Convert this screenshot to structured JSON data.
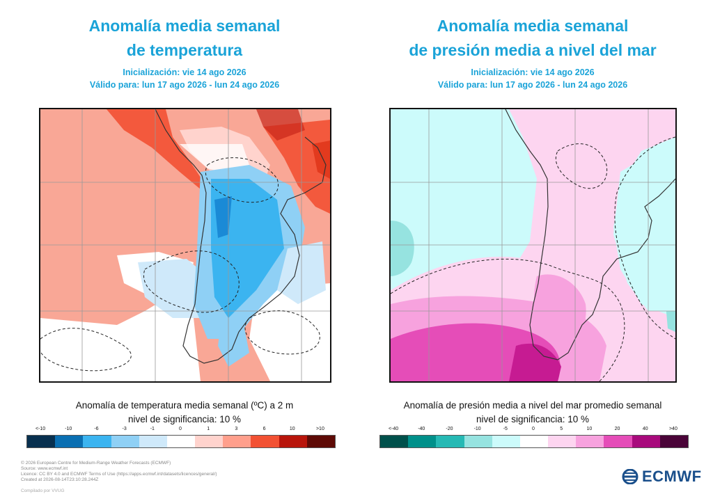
{
  "left": {
    "title_line1": "Anomalía media semanal",
    "title_line2": "de temperatura",
    "init": "Inicialización: vie 14 ago 2026",
    "valid": "Válido para: lun 17 ago 2026 - lun 24 ago 2026",
    "caption_line1": "Anomalía de temperatura media semanal (ºC) a 2 m",
    "caption_line2": "nivel de significancia: 10 %",
    "ticks": [
      "<-10",
      "-10",
      "-6",
      "-3",
      "-1",
      "0",
      "1",
      "3",
      "6",
      "10",
      ">10"
    ],
    "colors": [
      "#08304f",
      "#0a6fb2",
      "#3bb4f0",
      "#8fd0f5",
      "#cfe9fa",
      "#ffffff",
      "#ffd3cd",
      "#ff9f8c",
      "#f25133",
      "#b8150b",
      "#5e0a06"
    ]
  },
  "right": {
    "title_line1": "Anomalía media semanal",
    "title_line2": "de presión media a nivel del mar",
    "init": "Inicialización: vie 14 ago 2026",
    "valid": "Válido para: lun 17 ago 2026 - lun 24 ago 2026",
    "caption_line1": "Anomalía de presión media a nivel del mar promedio semanal",
    "caption_line2": "nivel de significancia: 10 %",
    "ticks": [
      "<-40",
      "-40",
      "-20",
      "-10",
      "-5",
      "0",
      "5",
      "10",
      "20",
      "40",
      ">40"
    ],
    "colors": [
      "#00504b",
      "#00908a",
      "#26b9b4",
      "#96e3e0",
      "#ccfbfb",
      "#ffffff",
      "#fdd5f0",
      "#f7a2de",
      "#e54db8",
      "#a80a7c",
      "#4a0438"
    ]
  },
  "footer": {
    "line1": "© 2026 European Centre for Medium-Range Weather Forecasts (ECMWF)",
    "line2": "Source: www.ecmwf.int",
    "line3": "Licence: CC BY 4.0 and ECMWF Terms of Use (https://apps.ecmwf.int/datasets/licences/general/)",
    "line4": "Created at 2026-08-14T23:10:28.244Z",
    "compiled": "Compilado por VVUG"
  },
  "logo": {
    "text": "ECMWF",
    "color": "#1a4f8b"
  }
}
